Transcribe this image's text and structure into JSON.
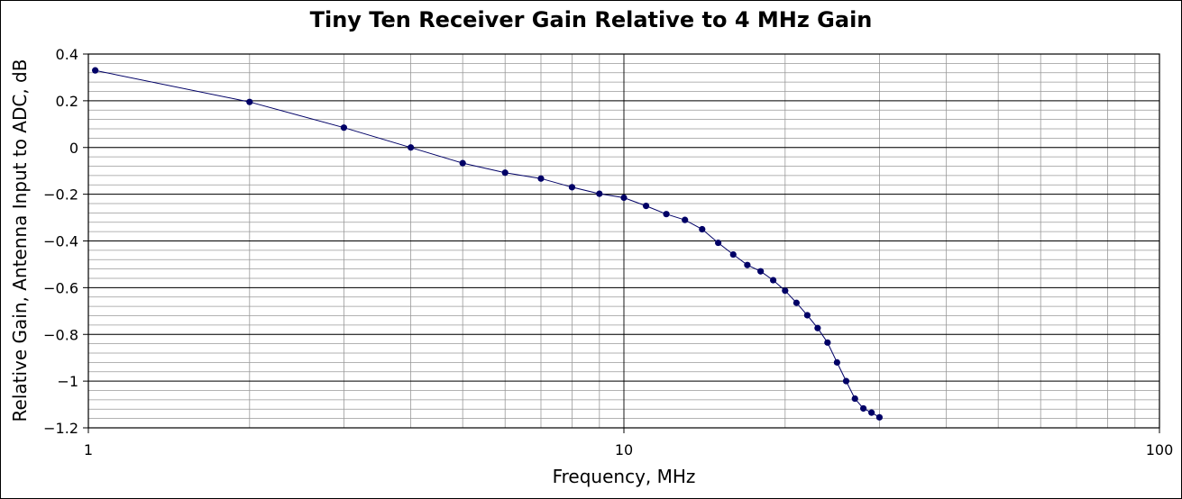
{
  "chart_data": {
    "type": "line",
    "title": "Tiny Ten Receiver Gain Relative to 4 MHz Gain",
    "xlabel": "Frequency, MHz",
    "ylabel": "Relative Gain, Antenna Input to ADC, dB",
    "x_scale": "log",
    "xlim": [
      1,
      100
    ],
    "ylim": [
      -1.2,
      0.4
    ],
    "x_ticks": [
      1,
      10,
      100
    ],
    "x_tick_labels": [
      "1",
      "10",
      "100"
    ],
    "y_ticks": [
      0.4,
      0.2,
      0,
      -0.2,
      -0.4,
      -0.6,
      -0.8,
      -1,
      -1.2
    ],
    "y_tick_labels": [
      "0.4",
      "0.2",
      "0",
      "−0.2",
      "−0.4",
      "−0.6",
      "−0.8",
      "−1",
      "−1.2"
    ],
    "grid": true,
    "legend": "none",
    "series": [
      {
        "color": "#000066",
        "x": [
          1.03,
          2,
          3,
          4,
          5,
          6,
          7,
          8,
          9,
          10,
          11,
          12,
          13,
          14,
          15,
          16,
          17,
          18,
          19,
          20,
          21,
          22,
          23,
          24,
          25,
          26,
          27,
          28,
          29,
          30
        ],
        "y": [
          0.33,
          0.195,
          0.085,
          0.0,
          -0.067,
          -0.108,
          -0.133,
          -0.17,
          -0.198,
          -0.215,
          -0.25,
          -0.285,
          -0.31,
          -0.35,
          -0.408,
          -0.458,
          -0.503,
          -0.53,
          -0.568,
          -0.613,
          -0.665,
          -0.718,
          -0.773,
          -0.835,
          -0.92,
          -1.0,
          -1.075,
          -1.117,
          -1.135,
          -1.155
        ]
      }
    ]
  }
}
